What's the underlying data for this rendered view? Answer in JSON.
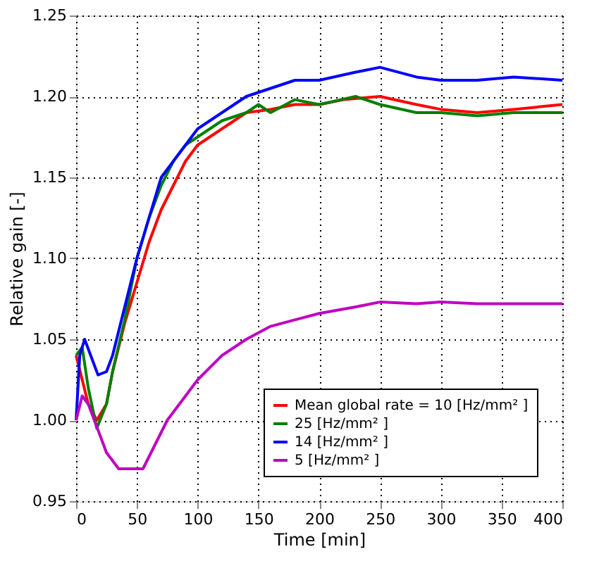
{
  "chart_data": {
    "type": "line",
    "xlabel": "Time [min]",
    "ylabel": "Relative gain [-]",
    "xlim": [
      0,
      400
    ],
    "ylim": [
      0.95,
      1.25
    ],
    "xticks": [
      0,
      50,
      100,
      150,
      200,
      250,
      300,
      350,
      400
    ],
    "yticks": [
      {
        "value": 0.95,
        "label": "0.95"
      },
      {
        "value": 1.0,
        "label": "1.00"
      },
      {
        "value": 1.05,
        "label": "1.05"
      },
      {
        "value": 1.1,
        "label": "1.10"
      },
      {
        "value": 1.15,
        "label": "1.15"
      },
      {
        "value": 1.2,
        "label": "1.20"
      },
      {
        "value": 1.25,
        "label": "1.25"
      }
    ],
    "grid": true,
    "legend": "bottom right",
    "line_style": "solid",
    "marker": "none",
    "series": [
      {
        "name": "Mean global rate = 10 [Hz/mm² ]",
        "color": "#ff0000",
        "x": [
          0,
          10,
          17,
          25,
          30,
          40,
          50,
          60,
          70,
          80,
          90,
          100,
          110,
          120,
          140,
          160,
          180,
          200,
          220,
          250,
          280,
          300,
          330,
          360,
          400
        ],
        "values": [
          1.04,
          1.01,
          1.0,
          1.01,
          1.03,
          1.06,
          1.085,
          1.11,
          1.13,
          1.145,
          1.16,
          1.17,
          1.175,
          1.18,
          1.19,
          1.192,
          1.195,
          1.195,
          1.198,
          1.2,
          1.195,
          1.192,
          1.19,
          1.192,
          1.195
        ]
      },
      {
        "name": "25 [Hz/mm² ]",
        "color": "#008000",
        "x": [
          0,
          5,
          10,
          17,
          25,
          30,
          40,
          50,
          60,
          70,
          80,
          90,
          100,
          120,
          140,
          150,
          160,
          180,
          200,
          230,
          250,
          280,
          300,
          330,
          360,
          380,
          400
        ],
        "values": [
          1.04,
          1.045,
          1.02,
          0.995,
          1.01,
          1.03,
          1.062,
          1.1,
          1.125,
          1.145,
          1.16,
          1.17,
          1.175,
          1.185,
          1.19,
          1.195,
          1.19,
          1.198,
          1.195,
          1.2,
          1.195,
          1.19,
          1.19,
          1.188,
          1.19,
          1.19,
          1.19
        ]
      },
      {
        "name": "14 [Hz/mm² ]",
        "color": "#0000ff",
        "x": [
          0,
          3,
          7,
          12,
          18,
          25,
          30,
          40,
          50,
          60,
          70,
          80,
          90,
          100,
          120,
          140,
          160,
          180,
          200,
          230,
          250,
          280,
          300,
          330,
          360,
          400
        ],
        "values": [
          1.0,
          1.04,
          1.05,
          1.04,
          1.028,
          1.03,
          1.04,
          1.07,
          1.1,
          1.125,
          1.15,
          1.16,
          1.17,
          1.18,
          1.19,
          1.2,
          1.205,
          1.21,
          1.21,
          1.215,
          1.218,
          1.212,
          1.21,
          1.21,
          1.212,
          1.21
        ]
      },
      {
        "name": "5 [Hz/mm² ]",
        "color": "#bf00bf",
        "x": [
          0,
          5,
          10,
          15,
          20,
          25,
          35,
          45,
          55,
          65,
          75,
          85,
          100,
          120,
          140,
          160,
          180,
          200,
          230,
          250,
          280,
          300,
          330,
          360,
          400
        ],
        "values": [
          1.0,
          1.015,
          1.01,
          1.0,
          0.99,
          0.98,
          0.97,
          0.97,
          0.97,
          0.985,
          1.0,
          1.01,
          1.025,
          1.04,
          1.05,
          1.058,
          1.062,
          1.066,
          1.07,
          1.073,
          1.072,
          1.073,
          1.072,
          1.072,
          1.072
        ]
      }
    ]
  }
}
